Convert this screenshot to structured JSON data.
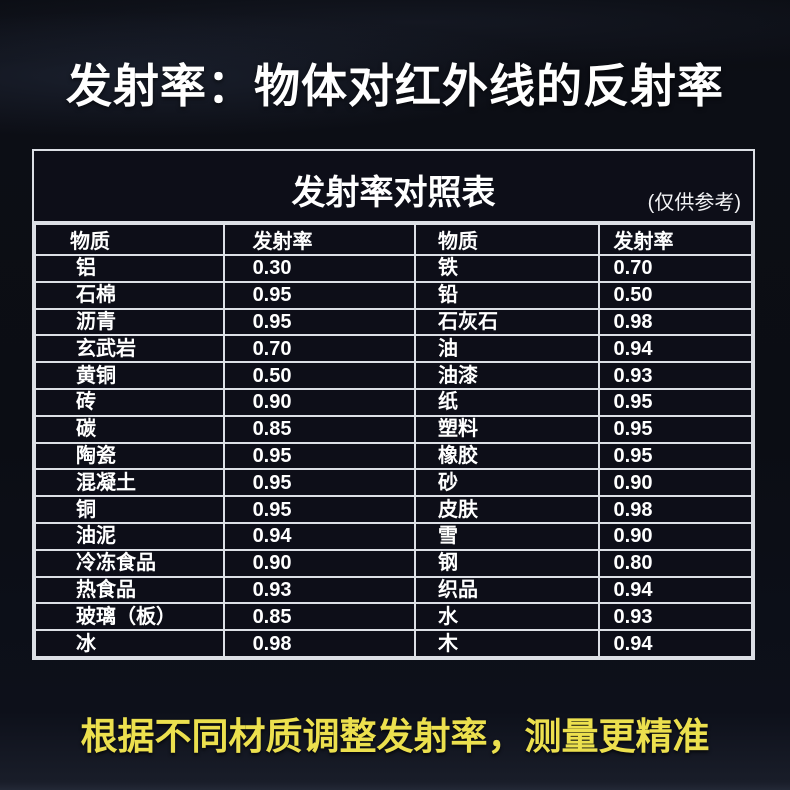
{
  "page": {
    "title": "发射率：物体对红外线的反射率",
    "footer": "根据不同材质调整发射率，测量更精准"
  },
  "table": {
    "title": "发射率对照表",
    "note": "(仅供参考)",
    "headers": [
      "物质",
      "发射率",
      "物质",
      "发射率"
    ],
    "rows": [
      [
        "铝",
        "0.30",
        "铁",
        "0.70"
      ],
      [
        "石棉",
        "0.95",
        "铅",
        "0.50"
      ],
      [
        "沥青",
        "0.95",
        "石灰石",
        "0.98"
      ],
      [
        "玄武岩",
        "0.70",
        "油",
        "0.94"
      ],
      [
        "黄铜",
        "0.50",
        "油漆",
        "0.93"
      ],
      [
        "砖",
        "0.90",
        "纸",
        "0.95"
      ],
      [
        "碳",
        "0.85",
        "塑料",
        "0.95"
      ],
      [
        "陶瓷",
        "0.95",
        "橡胶",
        "0.95"
      ],
      [
        "混凝土",
        "0.95",
        "砂",
        "0.90"
      ],
      [
        "铜",
        "0.95",
        "皮肤",
        "0.98"
      ],
      [
        "油泥",
        "0.94",
        "雪",
        "0.90"
      ],
      [
        "冷冻食品",
        "0.90",
        "钢",
        "0.80"
      ],
      [
        "热食品",
        "0.93",
        "织品",
        "0.94"
      ],
      [
        "玻璃（板）",
        "0.85",
        "水",
        "0.93"
      ],
      [
        "冰",
        "0.98",
        "木",
        "0.94"
      ]
    ]
  },
  "colors": {
    "accent_yellow": "#ece04e",
    "table_border": "#dcdfe5",
    "cell_bg": "#0d0e18",
    "bg_dark": "#0a0c13",
    "title_text": "#ffffff"
  }
}
